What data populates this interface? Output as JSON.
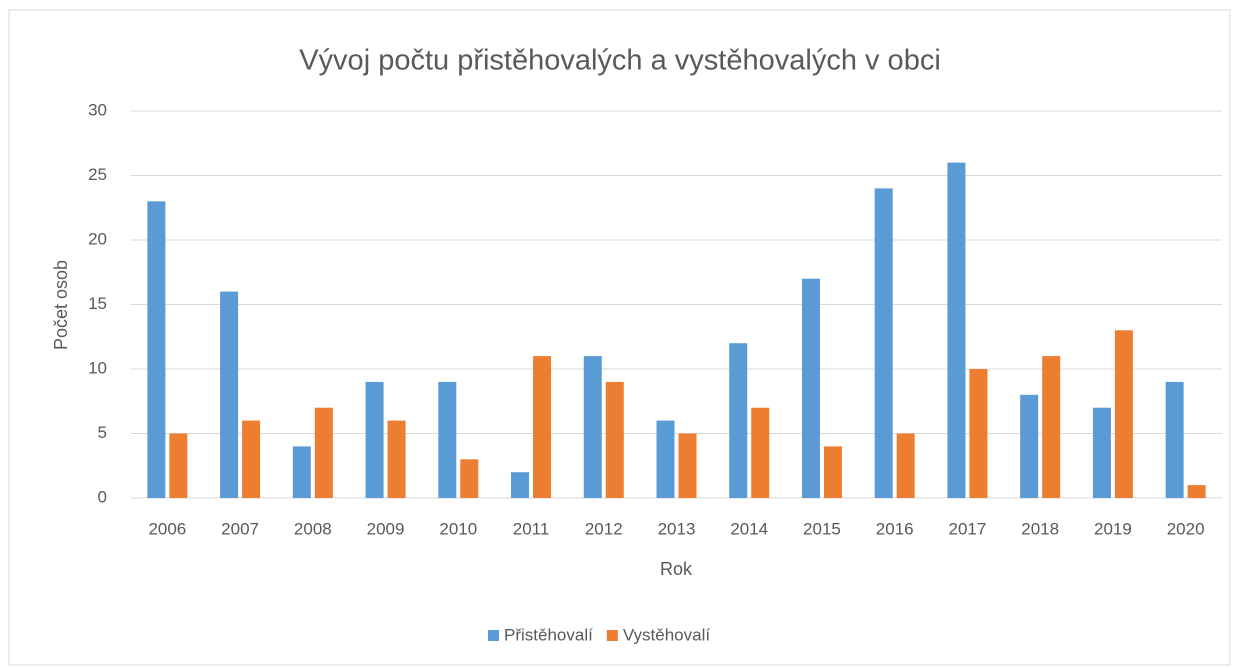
{
  "chart_data": {
    "type": "bar",
    "title": "Vývoj počtu přistěhovalých a vystěhovalých v obci",
    "x_label": "Rok",
    "y_label": "Počet osob",
    "categories": [
      "2006",
      "2007",
      "2008",
      "2009",
      "2010",
      "2011",
      "2012",
      "2013",
      "2014",
      "2015",
      "2016",
      "2017",
      "2018",
      "2019",
      "2020"
    ],
    "series": [
      {
        "name": "Přistěhovalí",
        "color": "#5b9bd5",
        "values": [
          23,
          16,
          4,
          9,
          9,
          2,
          11,
          6,
          12,
          17,
          24,
          26,
          8,
          7,
          9
        ]
      },
      {
        "name": "Vystěhovalí",
        "color": "#ed7d31",
        "values": [
          5,
          6,
          7,
          6,
          3,
          11,
          9,
          5,
          7,
          4,
          5,
          10,
          11,
          13,
          1
        ]
      }
    ],
    "ylim": [
      0,
      30
    ],
    "yticks": [
      0,
      5,
      10,
      15,
      20,
      25,
      30
    ],
    "grid": true,
    "legend": "bottom"
  }
}
